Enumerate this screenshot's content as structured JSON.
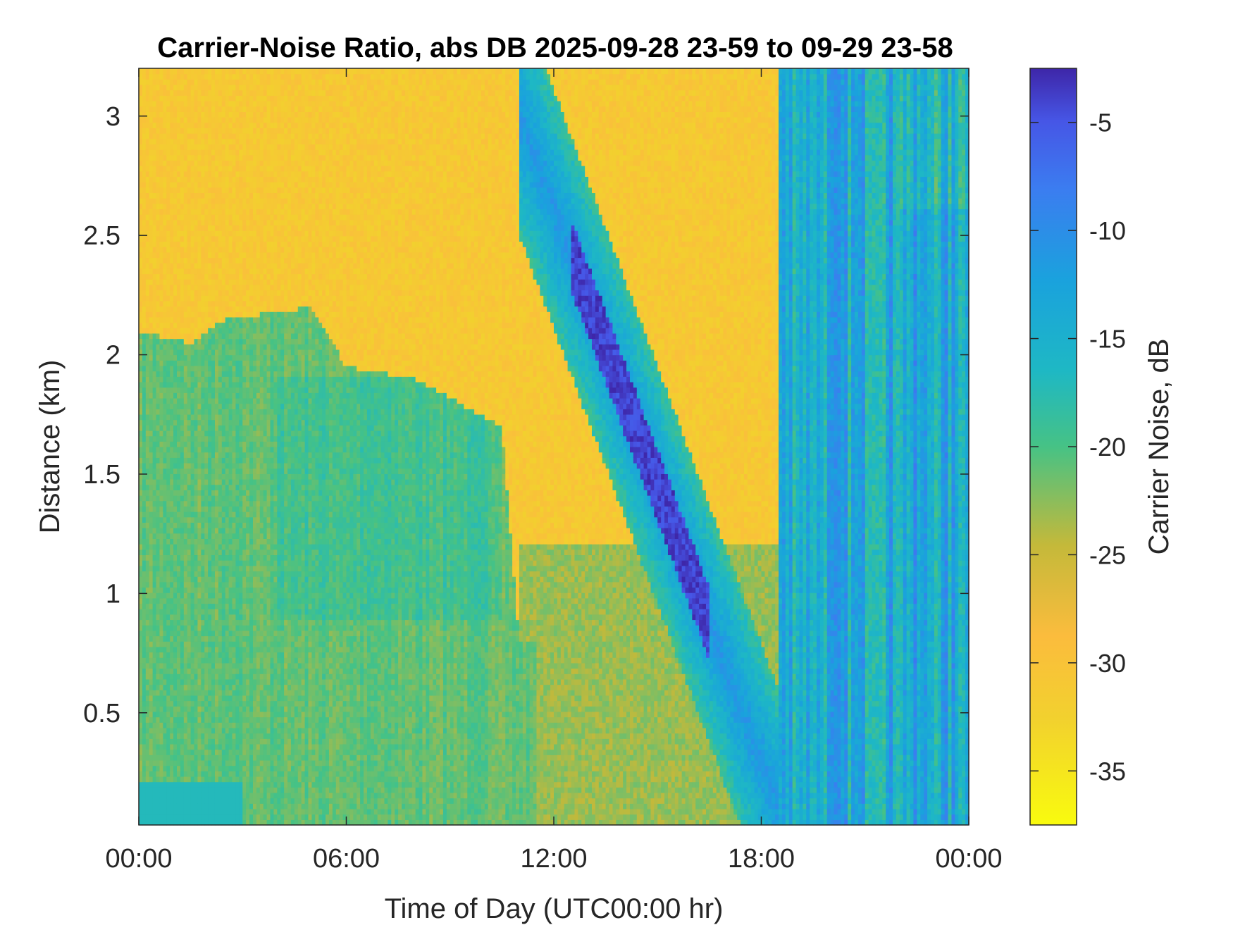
{
  "chart_data": {
    "type": "heatmap",
    "title": "Carrier-Noise Ratio, abs DB 2025-09-28 23-59 to 09-29 23-58",
    "xlabel": "Time of Day (UTC00:00 hr)",
    "ylabel": "Distance (km)",
    "colorbar_label": "Carrier Noise, dB",
    "colormap": "parula (reversed: yellow low, dark blue high)",
    "colors": {
      "low": "#f9fb0e",
      "mid_low": "#fbbc3d",
      "mid": "#1eb8c4",
      "mid_high": "#3b7df0",
      "high": "#3e26a8"
    },
    "x_range_hours": [
      0,
      24
    ],
    "x_ticks": [
      "00:00",
      "06:00",
      "12:00",
      "18:00",
      "00:00"
    ],
    "y_range_km": [
      0.03,
      3.2
    ],
    "y_ticks": [
      "0.5",
      "1",
      "1.5",
      "2",
      "2.5",
      "3"
    ],
    "clim_db": [
      -37.5,
      -2.5
    ],
    "colorbar_ticks": [
      "-5",
      "-10",
      "-15",
      "-20",
      "-25",
      "-30",
      "-35"
    ],
    "features": {
      "background_above_boundary_db": -31,
      "boundary_layer_db": -21,
      "boundary_layer_top_km": [
        [
          0,
          2.1
        ],
        [
          1.5,
          2.05
        ],
        [
          2.5,
          2.15
        ],
        [
          5,
          2.2
        ],
        [
          6,
          1.95
        ],
        [
          8,
          1.9
        ],
        [
          10.5,
          1.7
        ],
        [
          11,
          0.8
        ]
      ],
      "descending_plume": {
        "start": [
          11,
          3.0
        ],
        "end": [
          18.5,
          0.1
        ],
        "peak_db": -4
      },
      "late_columns_start_hour": 18.5,
      "late_columns_db_range": [
        -20,
        -5
      ],
      "surface_patch": {
        "hours": [
          0,
          3
        ],
        "km": [
          0.03,
          0.2
        ],
        "db": -17
      }
    }
  }
}
